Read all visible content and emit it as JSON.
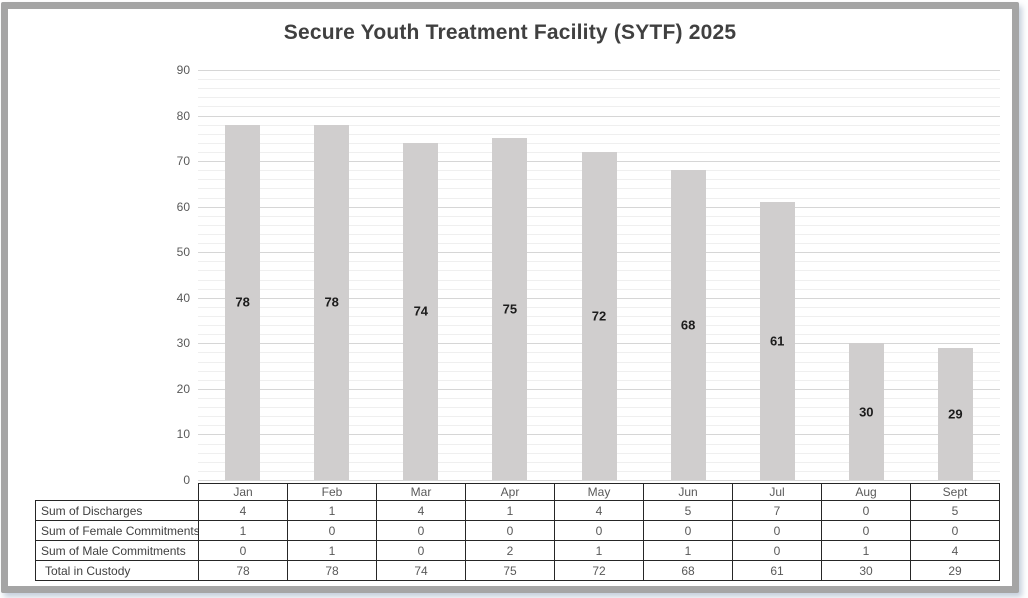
{
  "chart_data": {
    "type": "bar",
    "title": "Secure Youth Treatment Facility (SYTF) 2025",
    "categories": [
      "Jan",
      "Feb",
      "Mar",
      "Apr",
      "May",
      "Jun",
      "Jul",
      "Aug",
      "Sept"
    ],
    "values": [
      78,
      78,
      74,
      75,
      72,
      68,
      61,
      30,
      29
    ],
    "plotted_series_name": "Total in Custody",
    "bar_value_labels": [
      78,
      78,
      74,
      75,
      72,
      68,
      61,
      30,
      29
    ],
    "ylim": [
      0,
      90
    ],
    "ytick_step": 10,
    "minor_gridline_step": 2,
    "grid": "on",
    "legend": "none",
    "xlabel": "",
    "ylabel": "",
    "series": [
      {
        "name": "Sum of Discharges",
        "values": [
          4,
          1,
          4,
          1,
          4,
          5,
          7,
          0,
          5
        ]
      },
      {
        "name": "Sum of Female Commitments",
        "values": [
          1,
          0,
          0,
          0,
          0,
          0,
          0,
          0,
          0
        ]
      },
      {
        "name": "Sum of Male Commitments",
        "values": [
          0,
          1,
          0,
          2,
          1,
          1,
          0,
          1,
          4
        ]
      },
      {
        "name": "Total in Custody",
        "values": [
          78,
          78,
          74,
          75,
          72,
          68,
          61,
          30,
          29
        ]
      }
    ]
  },
  "colors": {
    "bar_fill": "#d0cece",
    "major_gridline": "#d6d6d6",
    "minor_gridline": "#efefef",
    "title_text": "#404040",
    "axis_text": "#595959",
    "table_border": "#262626",
    "table_label_text": "#404040",
    "table_value_text": "#595959",
    "frame_border": "#a5a5a5"
  }
}
